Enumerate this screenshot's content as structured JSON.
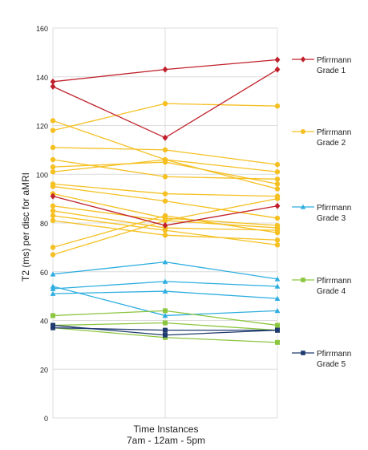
{
  "chart_data": {
    "type": "line",
    "title": "",
    "xlabel": "Time Instances",
    "xlabel_sub": "7am - 12am - 5pm",
    "ylabel": "T2 (ms) per disc for aMRI",
    "ylim": [
      0,
      160
    ],
    "yticks": [
      "0",
      "20",
      "40",
      "60",
      "80",
      "100",
      "120",
      "140",
      "160"
    ],
    "x": [
      "7am",
      "12am",
      "5pm"
    ],
    "grid": true,
    "legend_position": "right",
    "groups": [
      {
        "name": "Pfirrmann Grade 1",
        "label_lines": [
          "Pfirrmann",
          "Grade 1"
        ],
        "color": "#c0202a",
        "marker": "diamond",
        "series": [
          {
            "values": [
              138,
              143,
              147
            ]
          },
          {
            "values": [
              136,
              115,
              143
            ]
          },
          {
            "values": [
              91,
              79,
              87
            ]
          }
        ]
      },
      {
        "name": "Pfirrmann Grade 2",
        "label_lines": [
          "Pfirrmann",
          "Grade 2"
        ],
        "color": "#f5c022",
        "marker": "circle",
        "series": [
          {
            "values": [
              122,
              106,
              101
            ]
          },
          {
            "values": [
              118,
              129,
              128
            ]
          },
          {
            "values": [
              111,
              110,
              104
            ]
          },
          {
            "values": [
              106,
              99,
              98
            ]
          },
          {
            "values": [
              103,
              105,
              96
            ]
          },
          {
            "values": [
              101,
              106,
              94
            ]
          },
          {
            "values": [
              96,
              92,
              91
            ]
          },
          {
            "values": [
              95,
              89,
              82
            ]
          },
          {
            "values": [
              92,
              82,
              79
            ]
          },
          {
            "values": [
              87,
              81,
              78
            ]
          },
          {
            "values": [
              85,
              78,
              77
            ]
          },
          {
            "values": [
              83,
              77,
              71
            ]
          },
          {
            "values": [
              81,
              75,
              73
            ]
          },
          {
            "values": [
              70,
              83,
              76
            ]
          },
          {
            "values": [
              67,
              81,
              90
            ]
          }
        ]
      },
      {
        "name": "Pfirrmann Grade 3",
        "label_lines": [
          "Pfirrmann",
          "Grade 3"
        ],
        "color": "#2eaee0",
        "marker": "triangle",
        "series": [
          {
            "values": [
              59,
              64,
              57
            ]
          },
          {
            "values": [
              53,
              56,
              54
            ]
          },
          {
            "values": [
              51,
              52,
              49
            ]
          },
          {
            "values": [
              54,
              42,
              44
            ]
          }
        ]
      },
      {
        "name": "Pfirrmann Grade 4",
        "label_lines": [
          "Pfirrmann",
          "Grade 4"
        ],
        "color": "#8cc63f",
        "marker": "square",
        "series": [
          {
            "values": [
              42,
              44,
              38
            ]
          },
          {
            "values": [
              38,
              39,
              36
            ]
          },
          {
            "values": [
              37,
              33,
              31
            ]
          }
        ]
      },
      {
        "name": "Pfirrmann Grade 5",
        "label_lines": [
          "Pfirrmann",
          "Grade 5"
        ],
        "color": "#1f3a6e",
        "marker": "square",
        "series": [
          {
            "values": [
              38,
              34,
              36
            ]
          },
          {
            "values": [
              37,
              36,
              36
            ]
          }
        ]
      }
    ]
  }
}
